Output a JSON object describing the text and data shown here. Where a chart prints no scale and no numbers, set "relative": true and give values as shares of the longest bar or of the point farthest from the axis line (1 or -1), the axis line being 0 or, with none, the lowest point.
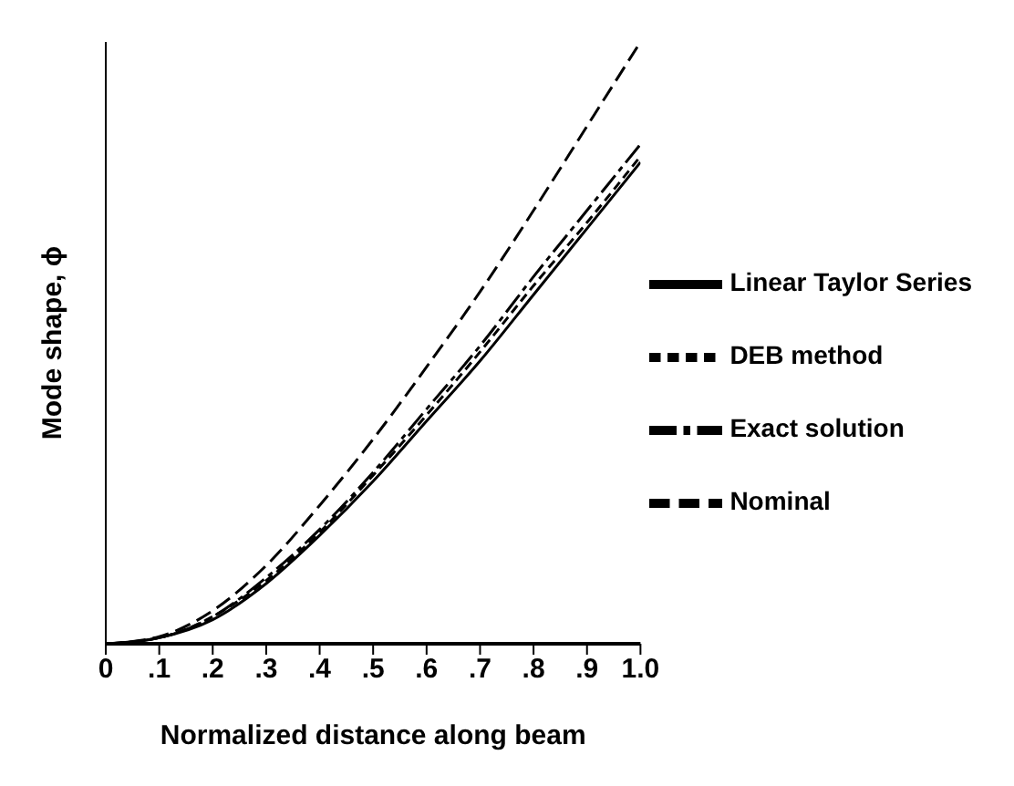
{
  "chart_data": {
    "type": "line",
    "relative": true,
    "xlabel": "Normalized distance along beam",
    "ylabel": "Mode shape, ϕ",
    "x": [
      0,
      0.1,
      0.2,
      0.3,
      0.4,
      0.5,
      0.6,
      0.7,
      0.8,
      0.9,
      1.0
    ],
    "xlim": [
      0,
      1
    ],
    "xticks": [
      0,
      {
        "value": 0.1,
        "label": ".1"
      },
      {
        "value": 0.2,
        "label": ".2"
      },
      {
        "value": 0.3,
        "label": ".3"
      },
      {
        "value": 0.4,
        "label": ".4"
      },
      {
        "value": 0.5,
        "label": ".5"
      },
      {
        "value": 0.6,
        "label": ".6"
      },
      {
        "value": 0.7,
        "label": ".7"
      },
      {
        "value": 0.8,
        "label": ".8"
      },
      {
        "value": 0.9,
        "label": ".9"
      },
      {
        "value": 1,
        "label": "1.0"
      }
    ],
    "legend": "right",
    "marker": "none",
    "grid": false,
    "series": [
      {
        "name": "Linear Taylor Series",
        "color": "#000000",
        "line_style": "solid",
        "values": [
          0,
          0.01,
          0.04,
          0.1,
          0.18,
          0.27,
          0.37,
          0.47,
          0.58,
          0.69,
          0.8
        ]
      },
      {
        "name": "DEB method",
        "color": "#000000",
        "line_style": "dashed",
        "values": [
          0,
          0.01,
          0.045,
          0.105,
          0.185,
          0.28,
          0.38,
          0.485,
          0.595,
          0.7,
          0.81
        ]
      },
      {
        "name": "Exact solution",
        "color": "#000000",
        "line_style": "dashdot",
        "values": [
          0,
          0.01,
          0.045,
          0.11,
          0.19,
          0.285,
          0.39,
          0.495,
          0.61,
          0.72,
          0.83
        ]
      },
      {
        "name": "Nominal",
        "color": "#000000",
        "line_style": "longdash",
        "values": [
          0,
          0.012,
          0.055,
          0.13,
          0.23,
          0.34,
          0.46,
          0.585,
          0.72,
          0.86,
          1.0
        ]
      }
    ]
  }
}
